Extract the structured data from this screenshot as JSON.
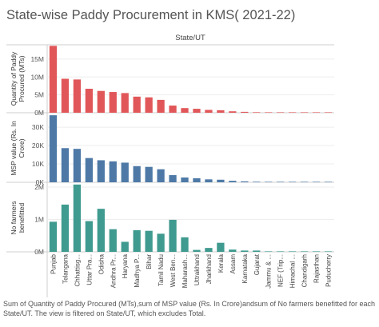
{
  "title": "State-wise Paddy Procurement in KMS( 2021-22)",
  "column_header": "State/UT",
  "footnote": "Sum of Quantity of Paddy Procured (MTs),sum of MSP value (Rs. In Crore)andsum of No farmers benefitted for each State/UT. The view is filtered on State/UT, which excludes Total.",
  "chart_data": {
    "type": "bar",
    "categories": [
      "Punjab",
      "Telangana",
      "Chhattisg...",
      "Uttar Pra...",
      "Odisha",
      "Andhra Pr...",
      "Haryana",
      "Madhya P...",
      "Bihar",
      "Tamil Nadu",
      "West Ben...",
      "Maharash...",
      "Uttrakhand",
      "Jharkhand",
      "Kerala",
      "Assam",
      "Karnataka",
      "Gujarat",
      "Jammu & ...",
      "NEF (Trip...",
      "Himachal ...",
      "Chandigarh",
      "Rajasthan",
      "Puducherry"
    ],
    "panels": [
      {
        "ylabel": "Quantity of Paddy Procured (MTs)",
        "color": "#e15759",
        "ylim": [
          0,
          19000000
        ],
        "ticks": [
          {
            "value": 0,
            "label": "0M"
          },
          {
            "value": 5000000,
            "label": "5M"
          },
          {
            "value": 10000000,
            "label": "10M"
          },
          {
            "value": 15000000,
            "label": "15M"
          }
        ],
        "values": [
          18700000,
          9500000,
          9300000,
          6700000,
          6100000,
          5800000,
          5500000,
          4500000,
          4300000,
          3600000,
          2000000,
          1300000,
          1100000,
          800000,
          700000,
          400000,
          250000,
          150000,
          120000,
          80000,
          30000,
          20000,
          10000,
          5000
        ]
      },
      {
        "ylabel": "MSP value (Rs. In Crore)",
        "color": "#4e79a7",
        "ylim": [
          0,
          37000
        ],
        "ticks": [
          {
            "value": 0,
            "label": "0K"
          },
          {
            "value": 10000,
            "label": "10K"
          },
          {
            "value": 20000,
            "label": "20K"
          },
          {
            "value": 30000,
            "label": "30K"
          }
        ],
        "values": [
          36500,
          18600,
          18200,
          13200,
          12000,
          11400,
          10700,
          8800,
          8400,
          7100,
          3900,
          2600,
          2200,
          1600,
          1400,
          800,
          500,
          300,
          250,
          150,
          60,
          40,
          20,
          10
        ]
      },
      {
        "ylabel": "No farmers benefitted",
        "color": "#3f9a8f",
        "ylim": [
          0,
          2100000
        ],
        "ticks": [
          {
            "value": 0,
            "label": "0M"
          },
          {
            "value": 1000000,
            "label": "1M"
          },
          {
            "value": 2000000,
            "label": "2M"
          }
        ],
        "values": [
          930000,
          1460000,
          2080000,
          950000,
          1330000,
          700000,
          310000,
          670000,
          650000,
          560000,
          990000,
          450000,
          60000,
          120000,
          280000,
          70000,
          40000,
          40000,
          5000,
          3000,
          2000,
          1000,
          1000,
          1000
        ]
      }
    ]
  }
}
